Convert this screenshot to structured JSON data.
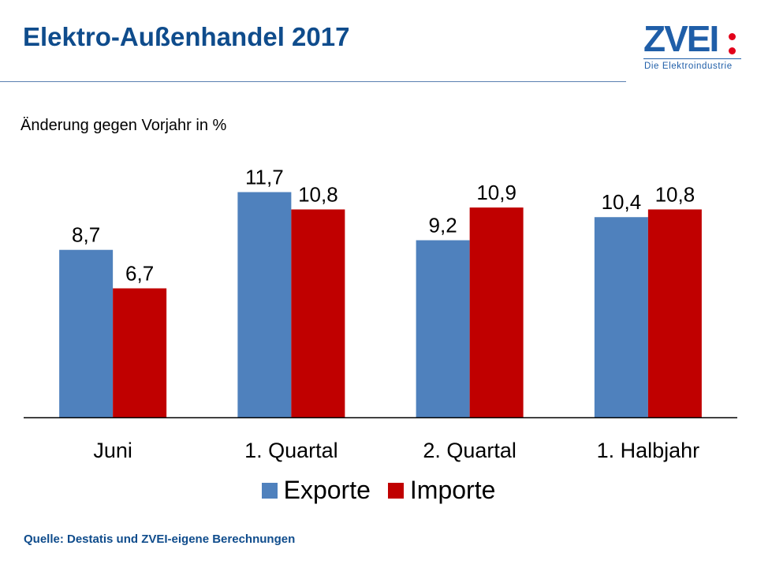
{
  "header": {
    "title": "Elektro-Außenhandel 2017",
    "logo": {
      "word": "ZVEI",
      "tagline": "Die Elektroindustrie"
    }
  },
  "colors": {
    "title": "#0f4c8c",
    "exporte": "#4f81bd",
    "importe": "#c00000"
  },
  "footer": {
    "source": "Quelle: Destatis und ZVEI-eigene Berechnungen"
  },
  "chart_data": {
    "type": "bar",
    "title": "Elektro-Außenhandel 2017",
    "subtitle": "Änderung gegen Vorjahr in %",
    "xlabel": "",
    "ylabel": "",
    "categories": [
      "Juni",
      "1. Quartal",
      "2. Quartal",
      "1. Halbjahr"
    ],
    "series": [
      {
        "name": "Exporte",
        "color": "#4f81bd",
        "values": [
          8.7,
          11.7,
          9.2,
          10.4
        ],
        "labels": [
          "8,7",
          "11,7",
          "9,2",
          "10,4"
        ]
      },
      {
        "name": "Importe",
        "color": "#c00000",
        "values": [
          6.7,
          10.8,
          10.9,
          10.8
        ],
        "labels": [
          "6,7",
          "10,8",
          "10,9",
          "10,8"
        ]
      }
    ],
    "ylim": [
      0,
      12
    ],
    "grid": false,
    "legend": "bottom"
  }
}
